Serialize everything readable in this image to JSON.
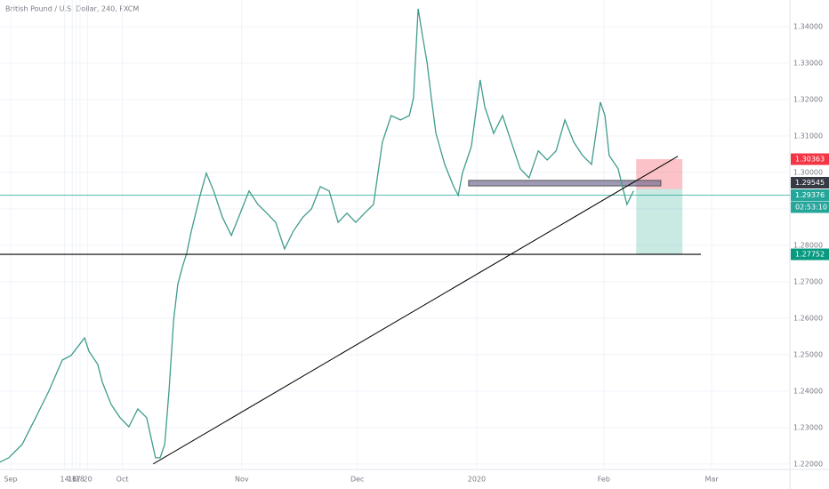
{
  "chart_data": {
    "type": "line",
    "title": "British Pound / U.S. Dollar, 240, FXCM",
    "x": [
      -2.8,
      -0.5,
      3.0,
      6.5,
      9.9,
      13.4,
      15.7,
      19.2,
      20.3,
      22.6,
      23.8,
      26.1,
      28.4,
      30.7,
      33.0,
      35.3,
      37.6,
      38.8,
      40.0,
      41.1,
      42.3,
      43.4,
      44.6,
      45.7,
      46.9,
      49.2,
      50.8,
      52.7,
      55.0,
      57.3,
      59.6,
      61.9,
      64.2,
      66.5,
      68.8,
      71.1,
      73.4,
      75.8,
      78.1,
      80.4,
      82.7,
      85.0,
      87.3,
      89.6,
      91.9,
      94.2,
      96.5,
      98.8,
      101.2,
      103.5,
      104.6,
      105.8,
      106.9,
      108.1,
      109.2,
      110.4,
      112.7,
      115.0,
      116.2,
      117.3,
      119.6,
      121.9,
      123.1,
      125.4,
      127.7,
      130.0,
      132.3,
      134.6,
      137.0,
      139.3,
      141.6,
      143.9,
      146.2,
      148.5,
      150.8,
      153.1,
      154.3,
      155.4,
      157.7,
      160.0,
      161.7
    ],
    "series": [
      {
        "name": "GBPUSD",
        "color": "#3f9c8c",
        "values": [
          1.2205,
          1.2217,
          1.2254,
          1.2327,
          1.24,
          1.2485,
          1.2498,
          1.2546,
          1.251,
          1.2473,
          1.2424,
          1.2363,
          1.2327,
          1.2302,
          1.2351,
          1.2327,
          1.2217,
          1.2217,
          1.2254,
          1.24,
          1.2595,
          1.2693,
          1.2741,
          1.2778,
          1.2839,
          1.2937,
          1.2998,
          1.2949,
          1.2876,
          1.2827,
          1.2888,
          1.2949,
          1.2912,
          1.2888,
          1.2863,
          1.279,
          1.2839,
          1.2876,
          1.29,
          1.2961,
          1.2949,
          1.2863,
          1.2888,
          1.2863,
          1.2888,
          1.2912,
          1.3083,
          1.3156,
          1.3144,
          1.3156,
          1.3205,
          1.3449,
          1.3376,
          1.3302,
          1.3205,
          1.3107,
          1.3022,
          1.2961,
          1.2937,
          1.2998,
          1.3071,
          1.3254,
          1.318,
          1.3107,
          1.3156,
          1.3083,
          1.301,
          1.2985,
          1.3059,
          1.3034,
          1.3059,
          1.3144,
          1.3083,
          1.3046,
          1.3022,
          1.3193,
          1.3156,
          1.3046,
          1.301,
          1.2912,
          1.2949
        ]
      }
    ],
    "xlim": [
      -2.77,
      202.3
    ],
    "xticks": [
      {
        "value": 0,
        "label": "Sep"
      },
      16,
      {
        "value": 29,
        "label": "Oct"
      },
      14,
      {
        "value": 60,
        "label": "Nov"
      },
      18,
      {
        "value": 90,
        "label": "Dec"
      },
      16,
      {
        "value": 121,
        "label": "2020"
      },
      20,
      {
        "value": 154,
        "label": "Feb"
      },
      17,
      {
        "value": 182,
        "label": "Mar"
      },
      16
    ],
    "ylim": [
      1.2185,
      1.3473
    ],
    "yticks": [
      {
        "value": 1.22,
        "label": "1.22000"
      },
      {
        "value": 1.23,
        "label": "1.23000"
      },
      {
        "value": 1.24,
        "label": "1.24000"
      },
      {
        "value": 1.25,
        "label": "1.25000"
      },
      {
        "value": 1.26,
        "label": "1.26000"
      },
      {
        "value": 1.27,
        "label": "1.27000"
      },
      {
        "value": 1.28,
        "label": "1.28000"
      },
      {
        "value": 1.29,
        "label": "1.29000"
      },
      {
        "value": 1.3,
        "label": "1.30000"
      },
      {
        "value": 1.31,
        "label": "1.31000"
      },
      {
        "value": 1.32,
        "label": "1.32000"
      },
      {
        "value": 1.33,
        "label": "1.33000"
      },
      {
        "value": 1.34,
        "label": "1.34000"
      }
    ],
    "grid": true,
    "trendline": {
      "x": [
        37.0,
        173.2
      ],
      "y": [
        1.22,
        1.3044
      ]
    },
    "zone": {
      "x": [
        118.9,
        168.8
      ],
      "y": [
        1.2963,
        1.2978
      ]
    },
    "position": {
      "x": [
        162.4,
        174.4
      ]
    },
    "support": {
      "x": [
        -2.77,
        179.2
      ],
      "y": 1.27752
    },
    "price_labels": [
      {
        "value": 1.30363,
        "label": "1.30363",
        "color": "#f23645"
      },
      {
        "value": 1.29545,
        "label": "1.29545",
        "color": "#363a45"
      },
      {
        "value": 1.29376,
        "label": "1.29376",
        "color": "#26a69a"
      },
      {
        "value": 1.27752,
        "label": "1.27752",
        "color": "#089981"
      }
    ],
    "countdown": "02:53:10"
  }
}
